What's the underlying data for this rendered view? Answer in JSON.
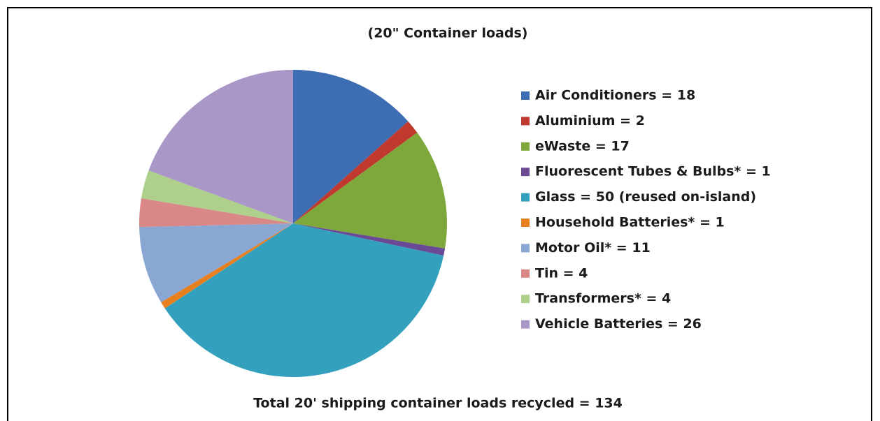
{
  "chart_data": {
    "type": "pie",
    "title": "(20\" Container loads)",
    "categories": [
      "Air Conditioners = 18",
      "Aluminium = 2",
      "eWaste = 17",
      "Fluorescent Tubes & Bulbs* = 1",
      "Glass = 50 (reused on-island)",
      "Household Batteries* = 1",
      "Motor Oil* = 11",
      "Tin = 4",
      "Transformers* = 4",
      "Vehicle Batteries = 26"
    ],
    "values": [
      18,
      2,
      17,
      1,
      50,
      1,
      11,
      4,
      4,
      26
    ],
    "colors": [
      "#3d6db3",
      "#c0392f",
      "#7fa83c",
      "#6a4a94",
      "#33a1bd",
      "#e8801f",
      "#8aa6d2",
      "#d98787",
      "#aed08a",
      "#a997c7"
    ],
    "annotation": "Total 20' shipping container loads recycled = 134",
    "legend": "right"
  }
}
